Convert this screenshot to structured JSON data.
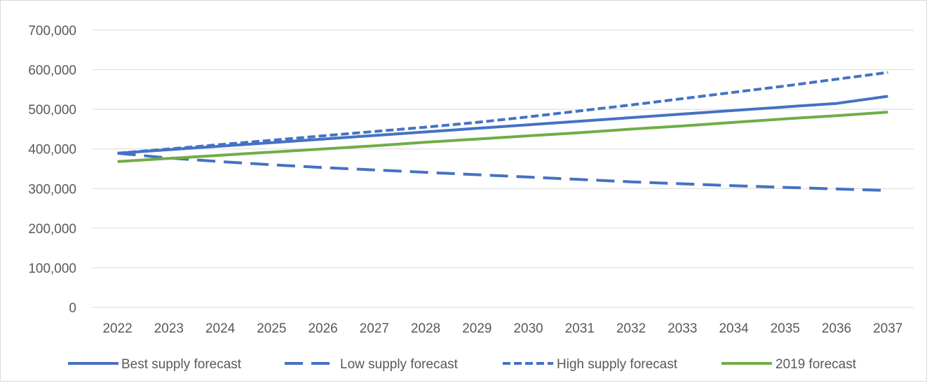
{
  "chart_data": {
    "type": "line",
    "title": "",
    "xlabel": "",
    "ylabel": "",
    "x": [
      "2022",
      "2023",
      "2024",
      "2025",
      "2026",
      "2027",
      "2028",
      "2029",
      "2030",
      "2031",
      "2032",
      "2033",
      "2034",
      "2035",
      "2036",
      "2037"
    ],
    "ylim": [
      0,
      700000
    ],
    "yticks": [
      0,
      100000,
      200000,
      300000,
      400000,
      500000,
      600000,
      700000
    ],
    "ytick_labels": [
      "0",
      "100,000",
      "200,000",
      "300,000",
      "400,000",
      "500,000",
      "600,000",
      "700,000"
    ],
    "grid": "horizontal",
    "legend_position": "bottom",
    "series": [
      {
        "name": "Best supply forecast",
        "color": "#4472C4",
        "dash": "solid",
        "values": [
          389000,
          398000,
          407000,
          416000,
          425000,
          434000,
          443000,
          452000,
          461000,
          470000,
          479000,
          488000,
          497000,
          506000,
          515000,
          533000
        ]
      },
      {
        "name": "Low supply forecast",
        "color": "#4472C4",
        "dash": "long-dash",
        "values": [
          389000,
          377000,
          368000,
          360000,
          353000,
          347000,
          341000,
          335000,
          329000,
          323000,
          317000,
          312000,
          307000,
          303000,
          299000,
          295000
        ]
      },
      {
        "name": "High supply forecast",
        "color": "#4472C4",
        "dash": "short-dash",
        "values": [
          389000,
          400000,
          411000,
          422000,
          433000,
          444000,
          455000,
          467000,
          481000,
          496000,
          511000,
          527000,
          543000,
          559000,
          576000,
          593000
        ]
      },
      {
        "name": "2019 forecast",
        "color": "#70AD47",
        "dash": "solid",
        "values": [
          368000,
          376000,
          384000,
          392000,
          400000,
          408000,
          417000,
          425000,
          433000,
          441000,
          450000,
          458000,
          467000,
          476000,
          484000,
          493000
        ]
      }
    ]
  }
}
